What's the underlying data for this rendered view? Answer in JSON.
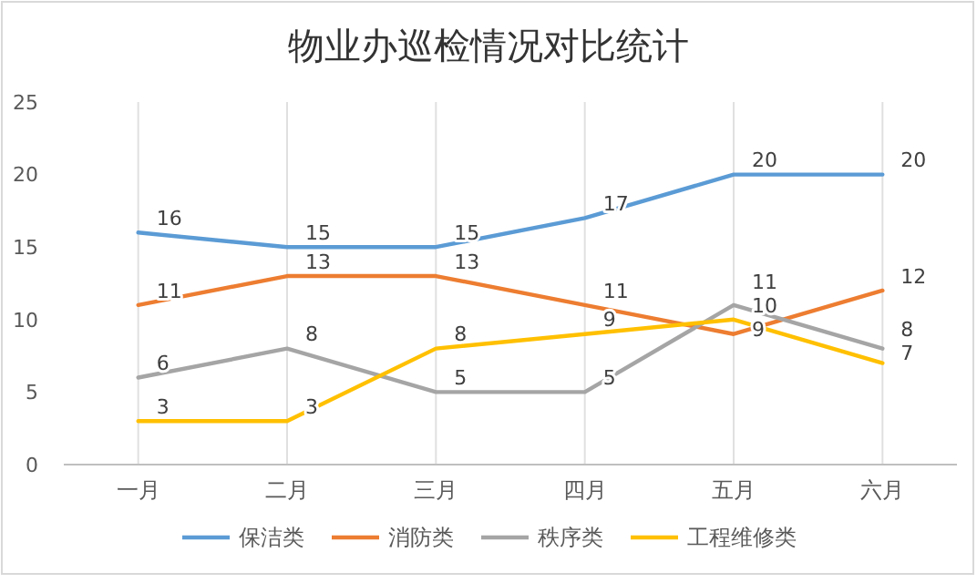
{
  "chart_data": {
    "type": "line",
    "title": "物业办巡检情况对比统计",
    "categories": [
      "一月",
      "二月",
      "三月",
      "四月",
      "五月",
      "六月"
    ],
    "series": [
      {
        "name": "保洁类",
        "color": "#5b9bd5",
        "values": [
          16,
          15,
          15,
          17,
          20,
          20
        ]
      },
      {
        "name": "消防类",
        "color": "#ed7d31",
        "values": [
          11,
          13,
          13,
          11,
          9,
          12
        ]
      },
      {
        "name": "秩序类",
        "color": "#a5a5a5",
        "values": [
          6,
          8,
          5,
          5,
          11,
          8
        ]
      },
      {
        "name": "工程维修类",
        "color": "#ffc000",
        "values": [
          3,
          3,
          8,
          9,
          10,
          7
        ]
      }
    ],
    "ylim": [
      0,
      25
    ],
    "yticks": [
      0,
      5,
      10,
      15,
      20,
      25
    ],
    "grid": "x",
    "legend": "bottom",
    "data_labels": true,
    "marker": "none",
    "line_style": "solid"
  }
}
